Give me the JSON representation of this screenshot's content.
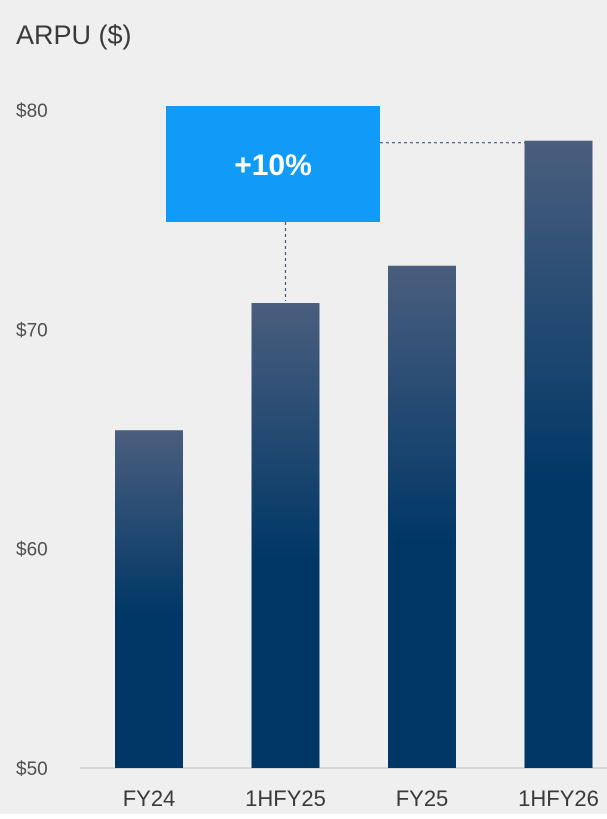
{
  "chart_data": {
    "type": "bar",
    "title": "ARPU ($)",
    "categories": [
      "FY24",
      "1HFY25",
      "FY25",
      "1HFY26"
    ],
    "values": [
      65.4,
      71.2,
      72.9,
      78.6
    ],
    "ylim": [
      50,
      80
    ],
    "yticks": [
      50,
      60,
      70,
      80
    ],
    "ytick_labels": [
      "$50",
      "$60",
      "$70",
      "$80"
    ],
    "grid": false,
    "annotation": {
      "text": "+10%",
      "from_category": "1HFY25",
      "to_category": "1HFY26"
    }
  },
  "colors": {
    "background": "#efefef",
    "bar_top": "#4a5e7e",
    "bar_bottom": "#003766",
    "callout_fill": "#0f9bf7",
    "callout_text": "#ffffff",
    "connector": "#3a5a80",
    "axis_line": "#cfcfcf"
  }
}
